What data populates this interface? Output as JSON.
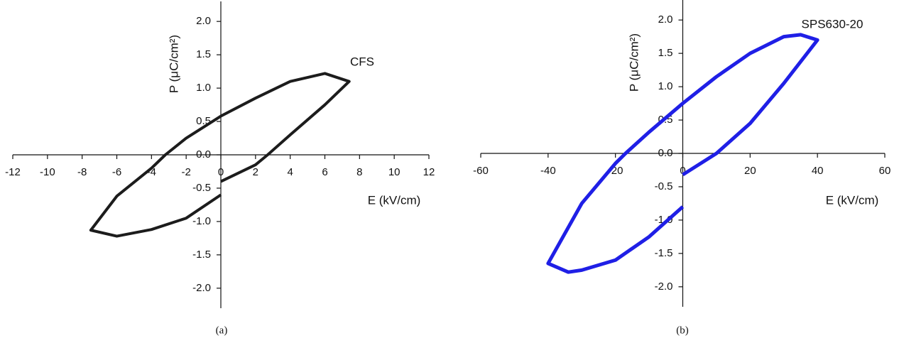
{
  "chart_data": [
    {
      "type": "line",
      "caption": "(a)",
      "annotation": "CFS",
      "xlabel": "E (kV/cm)",
      "ylabel": "P (μC/cm²)",
      "xlim": [
        -12,
        12
      ],
      "ylim": [
        -2.3,
        2.3
      ],
      "xticks": [
        -12,
        -10,
        -8,
        -6,
        -4,
        -2,
        0,
        2,
        4,
        6,
        8,
        10,
        12
      ],
      "yticks": [
        {
          "value": -2,
          "label": "-2.0"
        },
        {
          "value": -1.5,
          "label": "-1.5"
        },
        {
          "value": -1,
          "label": "-1.0"
        },
        {
          "value": -0.5,
          "label": "-0.5"
        },
        {
          "value": 0,
          "label": "0.0"
        },
        {
          "value": 0.5,
          "label": "0.5"
        },
        {
          "value": 1,
          "label": "1.0"
        },
        {
          "value": 1.5,
          "label": "1.5"
        },
        {
          "value": 2,
          "label": "2.0"
        }
      ],
      "series": [
        {
          "color": "#1c1c1c",
          "x": [
            0,
            2,
            2.7,
            4,
            6,
            7.4,
            6,
            4,
            2,
            0,
            -2,
            -3.2,
            -4,
            -6,
            -7.5,
            -6,
            -4,
            -2,
            0
          ],
          "values": [
            -0.4,
            -0.15,
            0,
            0.3,
            0.75,
            1.1,
            1.22,
            1.1,
            0.85,
            0.58,
            0.25,
            0,
            -0.2,
            -0.62,
            -1.13,
            -1.22,
            -1.12,
            -0.95,
            -0.6
          ]
        }
      ]
    },
    {
      "type": "line",
      "caption": "(b)",
      "annotation": "SPS630-20",
      "xlabel": "E (kV/cm)",
      "ylabel": "P (μC/cm²)",
      "xlim": [
        -60,
        60
      ],
      "ylim": [
        -2.3,
        2.3
      ],
      "xticks": [
        -60,
        -40,
        -20,
        0,
        20,
        40,
        60
      ],
      "yticks": [
        {
          "value": -2,
          "label": "-2.0"
        },
        {
          "value": -1.5,
          "label": "-1.5"
        },
        {
          "value": -1,
          "label": "-1.0"
        },
        {
          "value": -0.5,
          "label": "-0.5"
        },
        {
          "value": 0,
          "label": "0.0"
        },
        {
          "value": 0.5,
          "label": "0.5"
        },
        {
          "value": 1,
          "label": "1.0"
        },
        {
          "value": 1.5,
          "label": "1.5"
        },
        {
          "value": 2,
          "label": "2.0"
        }
      ],
      "series": [
        {
          "color": "#1f1fe6",
          "x": [
            0,
            10,
            20,
            30,
            40,
            35,
            30,
            20,
            10,
            0,
            -10,
            -17,
            -20,
            -30,
            -40,
            -34,
            -30,
            -20,
            -10,
            0
          ],
          "values": [
            -0.32,
            0,
            0.45,
            1.05,
            1.7,
            1.78,
            1.75,
            1.5,
            1.15,
            0.75,
            0.32,
            0,
            -0.15,
            -0.75,
            -1.65,
            -1.78,
            -1.75,
            -1.6,
            -1.25,
            -0.8
          ]
        }
      ]
    }
  ]
}
